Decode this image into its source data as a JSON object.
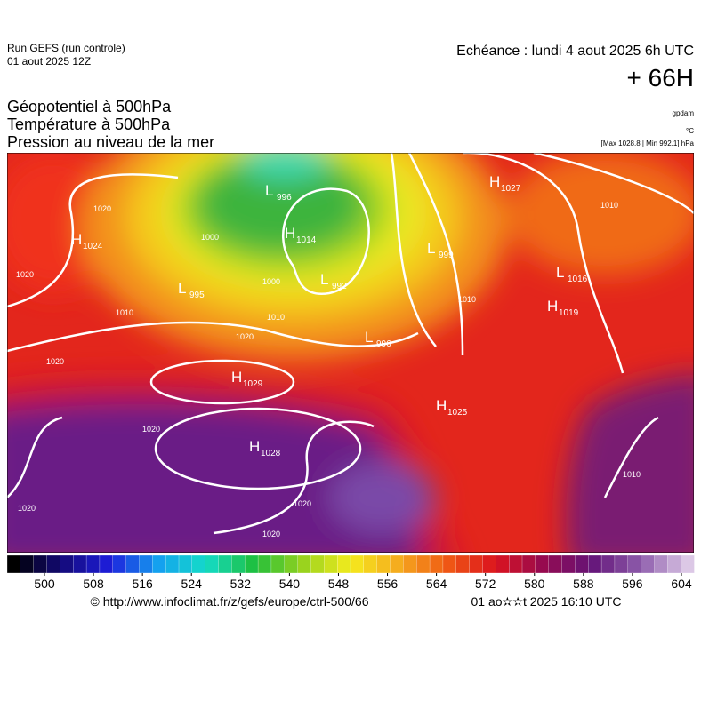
{
  "header": {
    "run": "Run GEFS (run controle)",
    "run_date": "01 aout 2025 12Z",
    "echeance": "Echéance : lundi 4 aout 2025 6h UTC",
    "lead": "+ 66H"
  },
  "titles": [
    "Géopotentiel à 500hPa",
    "Température à 500hPa",
    "Pression au niveau de la mer"
  ],
  "units": [
    "gpdam",
    "°C",
    "[Max 1028.8 | Min 992.1] hPa"
  ],
  "pressure_centers": [
    {
      "kind": "H",
      "value": 1024
    },
    {
      "kind": "L",
      "value": 995
    },
    {
      "kind": "L",
      "value": 996
    },
    {
      "kind": "H",
      "value": 1014
    },
    {
      "kind": "L",
      "value": 992
    },
    {
      "kind": "L",
      "value": 999
    },
    {
      "kind": "H",
      "value": 1027
    },
    {
      "kind": "L",
      "value": 1016
    },
    {
      "kind": "H",
      "value": 1019
    },
    {
      "kind": "L",
      "value": 996
    },
    {
      "kind": "H",
      "value": 1029
    },
    {
      "kind": "H",
      "value": 1025
    },
    {
      "kind": "H",
      "value": 1028
    }
  ],
  "isobar_labels": [
    "1020",
    "1020",
    "1010",
    "1000",
    "1000",
    "1010",
    "1020",
    "1020",
    "1020",
    "1020",
    "1020",
    "1020",
    "1010",
    "1010",
    "1010"
  ],
  "colorbar": {
    "ticks": [
      500,
      508,
      516,
      524,
      532,
      540,
      548,
      556,
      564,
      572,
      580,
      588,
      596,
      604
    ]
  },
  "footer": {
    "source": "© http://www.infoclimat.fr/z/gefs/europe/ctrl-500/66",
    "timestamp": "01 ao✫✫t 2025 16:10 UTC"
  }
}
